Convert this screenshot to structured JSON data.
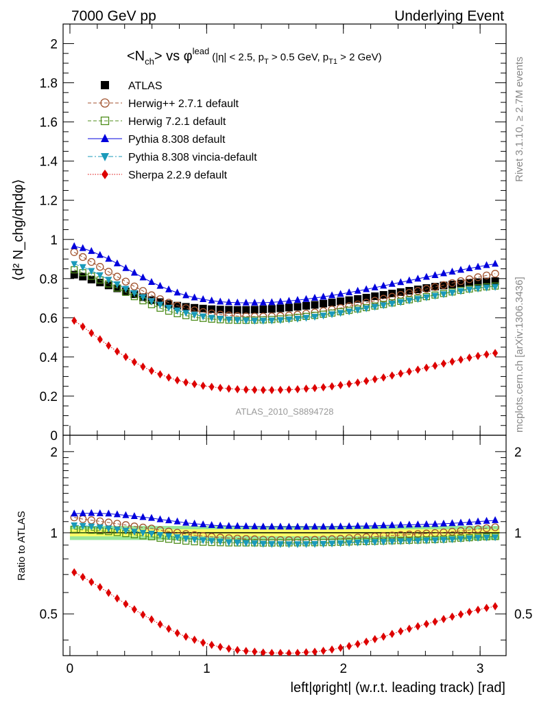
{
  "header": {
    "left": "7000 GeV pp",
    "right": "Underlying Event"
  },
  "side_labels": {
    "rivet": "Rivet 3.1.10, ≥ 2.7M events",
    "mcplots": "mcplots.cern.ch [arXiv:1306.3436]"
  },
  "chart_data": [
    {
      "type": "line",
      "title_main": "<N",
      "title_sub1": "ch",
      "title_mid": "> vs φ",
      "title_sup": "lead",
      "title_cuts": "(|η| < 2.5, p",
      "title_cuts_sub1": "T",
      "title_cuts_mid": " > 0.5 GeV, p",
      "title_cuts_sub2": "T1",
      "title_cuts_end": " > 2 GeV)",
      "ylabel": "⟨d² N_chg/dηdφ⟩",
      "ylim": [
        0,
        2.1
      ],
      "xlim": [
        -0.05,
        3.19
      ],
      "yticks": [
        0,
        0.2,
        0.4,
        0.6,
        0.8,
        1,
        1.2,
        1.4,
        1.6,
        1.8,
        2
      ],
      "ytick_labels": [
        "0",
        "0.2",
        "0.4",
        "0.6",
        "0.8",
        "1",
        "1.2",
        "1.4",
        "1.6",
        "1.8",
        "2"
      ],
      "watermark": "ATLAS_2010_S8894728",
      "legend": [
        "ATLAS",
        "Herwig++ 2.7.1 default",
        "Herwig 7.2.1 default",
        "Pythia 8.308 default",
        "Pythia 8.308 vincia-default",
        "Sherpa 2.2.9 default"
      ],
      "x": [
        0.0314,
        0.0942,
        0.1571,
        0.2199,
        0.2827,
        0.3456,
        0.4084,
        0.4712,
        0.5341,
        0.5969,
        0.6597,
        0.7226,
        0.7854,
        0.8482,
        0.911,
        0.9739,
        1.0367,
        1.0996,
        1.1624,
        1.2252,
        1.2881,
        1.3509,
        1.4137,
        1.4765,
        1.5394,
        1.6022,
        1.665,
        1.7279,
        1.7907,
        1.8535,
        1.9164,
        1.9792,
        2.042,
        2.1049,
        2.1677,
        2.2305,
        2.2934,
        2.3562,
        2.419,
        2.4819,
        2.5447,
        2.6075,
        2.6704,
        2.7332,
        2.796,
        2.8588,
        2.9217,
        2.9845,
        3.0473,
        3.1102
      ],
      "series": [
        {
          "name": "ATLAS",
          "color": "#000000",
          "marker": "square-filled",
          "values": [
            0.82,
            0.81,
            0.795,
            0.78,
            0.765,
            0.75,
            0.735,
            0.72,
            0.705,
            0.69,
            0.68,
            0.67,
            0.662,
            0.656,
            0.651,
            0.647,
            0.644,
            0.642,
            0.641,
            0.64,
            0.64,
            0.641,
            0.643,
            0.645,
            0.648,
            0.652,
            0.656,
            0.661,
            0.666,
            0.672,
            0.678,
            0.684,
            0.69,
            0.696,
            0.703,
            0.71,
            0.717,
            0.724,
            0.731,
            0.738,
            0.745,
            0.752,
            0.759,
            0.765,
            0.77,
            0.775,
            0.779,
            0.782,
            0.785,
            0.787
          ]
        },
        {
          "name": "Herwig++ 2.7.1 default",
          "color": "#a0522d",
          "marker": "circle-open",
          "dash": "5,3",
          "values": [
            0.935,
            0.91,
            0.885,
            0.86,
            0.835,
            0.81,
            0.785,
            0.76,
            0.737,
            0.715,
            0.695,
            0.677,
            0.662,
            0.649,
            0.638,
            0.629,
            0.622,
            0.616,
            0.612,
            0.609,
            0.607,
            0.606,
            0.606,
            0.607,
            0.609,
            0.612,
            0.616,
            0.621,
            0.627,
            0.634,
            0.642,
            0.65,
            0.659,
            0.668,
            0.677,
            0.687,
            0.697,
            0.707,
            0.717,
            0.727,
            0.737,
            0.747,
            0.757,
            0.767,
            0.777,
            0.787,
            0.797,
            0.807,
            0.816,
            0.825
          ]
        },
        {
          "name": "Herwig 7.2.1 default",
          "color": "#4d8c1a",
          "marker": "square-open",
          "dash": "5,3",
          "values": [
            0.845,
            0.83,
            0.812,
            0.793,
            0.773,
            0.752,
            0.73,
            0.708,
            0.687,
            0.667,
            0.649,
            0.634,
            0.621,
            0.611,
            0.603,
            0.597,
            0.593,
            0.59,
            0.588,
            0.587,
            0.587,
            0.588,
            0.589,
            0.591,
            0.594,
            0.598,
            0.602,
            0.607,
            0.612,
            0.618,
            0.624,
            0.631,
            0.638,
            0.645,
            0.652,
            0.66,
            0.668,
            0.676,
            0.684,
            0.692,
            0.7,
            0.708,
            0.716,
            0.724,
            0.732,
            0.74,
            0.747,
            0.753,
            0.758,
            0.762
          ]
        },
        {
          "name": "Pythia 8.308 default",
          "color": "#0000dd",
          "marker": "triangle-up",
          "values": [
            0.965,
            0.955,
            0.94,
            0.92,
            0.9,
            0.877,
            0.853,
            0.829,
            0.805,
            0.782,
            0.762,
            0.744,
            0.728,
            0.714,
            0.703,
            0.694,
            0.687,
            0.682,
            0.679,
            0.677,
            0.676,
            0.676,
            0.677,
            0.679,
            0.682,
            0.686,
            0.69,
            0.695,
            0.701,
            0.707,
            0.714,
            0.721,
            0.729,
            0.737,
            0.745,
            0.754,
            0.763,
            0.772,
            0.781,
            0.79,
            0.799,
            0.808,
            0.817,
            0.826,
            0.835,
            0.844,
            0.852,
            0.86,
            0.868,
            0.875
          ]
        },
        {
          "name": "Pythia 8.308 vincia-default",
          "color": "#1a9aba",
          "marker": "triangle-down",
          "dash": "7,3,2,3",
          "values": [
            0.875,
            0.86,
            0.84,
            0.818,
            0.795,
            0.772,
            0.749,
            0.727,
            0.706,
            0.686,
            0.668,
            0.652,
            0.638,
            0.626,
            0.616,
            0.608,
            0.601,
            0.596,
            0.592,
            0.589,
            0.587,
            0.586,
            0.586,
            0.587,
            0.589,
            0.592,
            0.596,
            0.601,
            0.606,
            0.612,
            0.619,
            0.626,
            0.633,
            0.641,
            0.649,
            0.657,
            0.665,
            0.673,
            0.681,
            0.689,
            0.697,
            0.705,
            0.713,
            0.721,
            0.729,
            0.737,
            0.744,
            0.75,
            0.755,
            0.758
          ]
        },
        {
          "name": "Sherpa 2.2.9 default",
          "color": "#dd0000",
          "marker": "diamond",
          "dash": "1.5,2",
          "values": [
            0.585,
            0.555,
            0.522,
            0.49,
            0.458,
            0.428,
            0.4,
            0.374,
            0.35,
            0.329,
            0.311,
            0.295,
            0.281,
            0.27,
            0.261,
            0.253,
            0.247,
            0.242,
            0.238,
            0.235,
            0.233,
            0.232,
            0.231,
            0.231,
            0.232,
            0.233,
            0.235,
            0.238,
            0.241,
            0.245,
            0.25,
            0.256,
            0.262,
            0.269,
            0.277,
            0.286,
            0.295,
            0.305,
            0.315,
            0.325,
            0.335,
            0.345,
            0.355,
            0.366,
            0.376,
            0.386,
            0.396,
            0.405,
            0.413,
            0.42
          ]
        }
      ]
    },
    {
      "type": "line",
      "ylabel": "Ratio to ATLAS",
      "xlabel": "left|φright| (w.r.t. leading track) [rad]",
      "ylim": [
        0.35,
        2.3
      ],
      "xlim": [
        -0.05,
        3.19
      ],
      "yscale": "log",
      "yticks": [
        0.5,
        1,
        2
      ],
      "ytick_labels": [
        "0.5",
        "1",
        "2"
      ],
      "xticks": [
        0,
        1,
        2,
        3
      ],
      "xtick_labels": [
        "0",
        "1",
        "2",
        "3"
      ],
      "reference": 1,
      "uncertainty_band": {
        "stat": 0.03,
        "total": 0.06,
        "stat_color": "#ffff66",
        "total_color": "#99e699"
      }
    }
  ]
}
